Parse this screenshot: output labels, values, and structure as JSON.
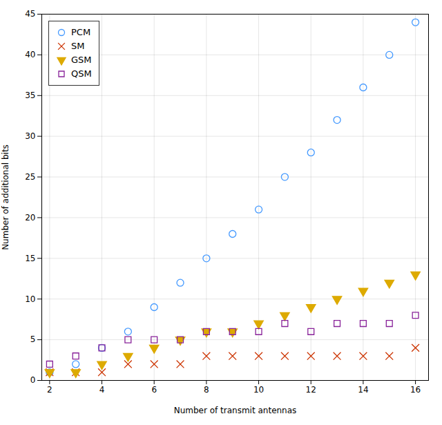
{
  "chart_data": {
    "type": "scatter",
    "x": [
      2,
      3,
      4,
      5,
      6,
      7,
      8,
      9,
      10,
      11,
      12,
      13,
      14,
      15,
      16
    ],
    "series": [
      {
        "name": "PCM",
        "color": "#4499ff",
        "marker": "open_circle",
        "values": [
          1,
          2,
          4,
          6,
          9,
          12,
          15,
          18,
          21,
          25,
          28,
          32,
          36,
          40,
          44
        ]
      },
      {
        "name": "SM",
        "color": "#cc3300",
        "marker": "x",
        "values": [
          1,
          1,
          1,
          2,
          2,
          2,
          3,
          3,
          3,
          3,
          3,
          3,
          3,
          3,
          4
        ]
      },
      {
        "name": "GSM",
        "color": "#ddaa00",
        "marker": "filled_triangle_down",
        "values": [
          1,
          1,
          2,
          3,
          4,
          5,
          6,
          6,
          7,
          8,
          9,
          10,
          11,
          12,
          13
        ]
      },
      {
        "name": "QSM",
        "color": "#882299",
        "marker": "open_square",
        "values": [
          2,
          3,
          4,
          5,
          5,
          5,
          6,
          6,
          6,
          7,
          6,
          7,
          7,
          7,
          8
        ]
      }
    ],
    "xlabel": "Number of transmit antennas",
    "ylabel": "Number of additional bits",
    "xlim": [
      1.7,
      16.5
    ],
    "ylim": [
      0,
      45
    ],
    "xticks": [
      2,
      4,
      6,
      8,
      10,
      12,
      14,
      16
    ],
    "yticks": [
      0,
      5,
      10,
      15,
      20,
      25,
      30,
      35,
      40,
      45
    ],
    "grid": true,
    "legend": "upper left"
  }
}
